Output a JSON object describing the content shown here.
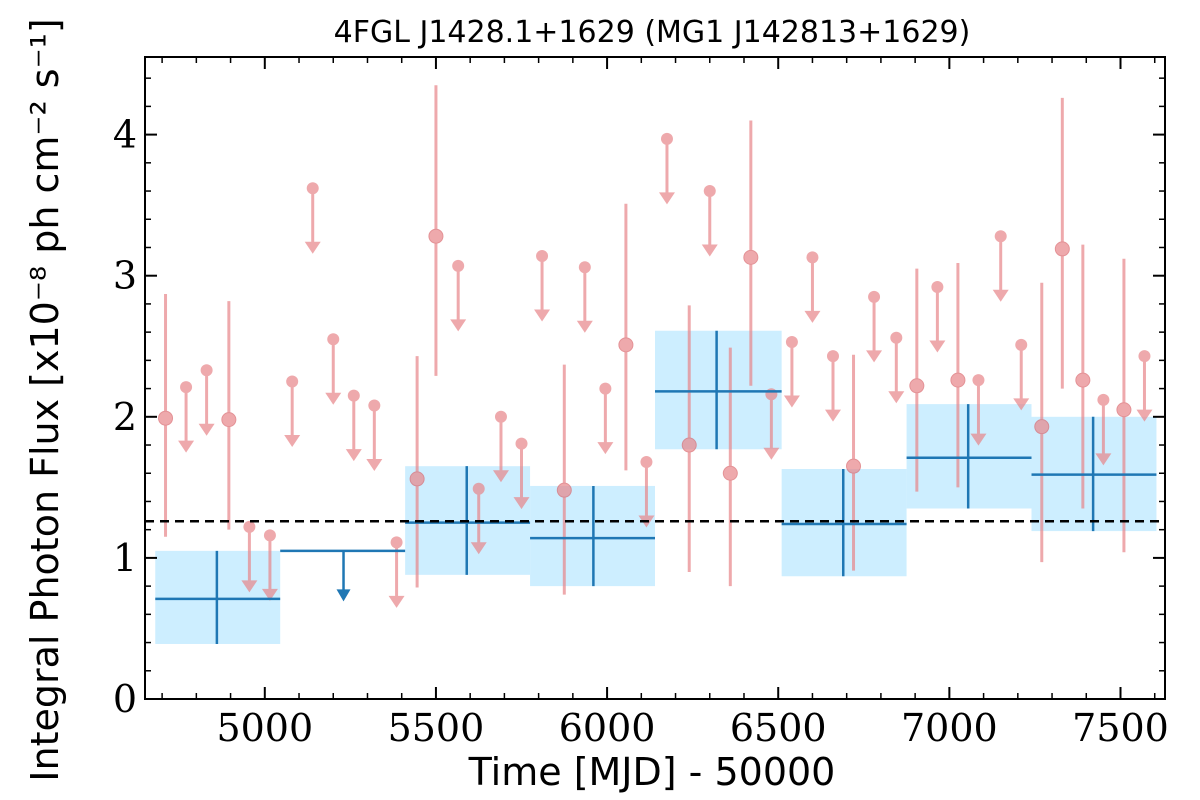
{
  "chart_data": {
    "type": "scatter",
    "title": "4FGL J1428.1+1629 (MG1 J142813+1629)",
    "xlabel": "Time [MJD] - 50000",
    "ylabel": "Integral Photon Flux [x10⁻⁸ ph cm⁻² s⁻¹]",
    "xlim": [
      4650,
      7630
    ],
    "ylim": [
      0,
      4.55
    ],
    "xticks": [
      5000,
      5500,
      6000,
      6500,
      7000,
      7500
    ],
    "yticks": [
      0,
      1,
      2,
      3,
      4
    ],
    "xtick_labels": [
      "5000",
      "5500",
      "6000",
      "6500",
      "7000",
      "7500"
    ],
    "ytick_labels": [
      "0",
      "1",
      "2",
      "3",
      "4"
    ],
    "reference_line": {
      "y": 1.26,
      "style": "dashed",
      "color": "#000000"
    },
    "colors": {
      "fine_bins": "#e8868a",
      "coarse_bins": "#1f77b4",
      "coarse_band": "#cdeeff"
    },
    "series": [
      {
        "binning": "fine",
        "detections": [
          {
            "x": 4710,
            "y": 1.99,
            "ylo": 1.15,
            "yhi": 2.87
          },
          {
            "x": 4895,
            "y": 1.98,
            "ylo": 1.2,
            "yhi": 2.82
          },
          {
            "x": 5445,
            "y": 1.56,
            "ylo": 0.79,
            "yhi": 2.43
          },
          {
            "x": 5500,
            "y": 3.28,
            "ylo": 2.29,
            "yhi": 4.35
          },
          {
            "x": 5875,
            "y": 1.48,
            "ylo": 0.74,
            "yhi": 2.37
          },
          {
            "x": 6055,
            "y": 2.51,
            "ylo": 1.62,
            "yhi": 3.51
          },
          {
            "x": 6240,
            "y": 1.8,
            "ylo": 0.9,
            "yhi": 2.79
          },
          {
            "x": 6360,
            "y": 1.6,
            "ylo": 0.8,
            "yhi": 2.49
          },
          {
            "x": 6420,
            "y": 3.13,
            "ylo": 2.22,
            "yhi": 4.1
          },
          {
            "x": 6720,
            "y": 1.65,
            "ylo": 0.91,
            "yhi": 2.44
          },
          {
            "x": 6905,
            "y": 2.22,
            "ylo": 1.47,
            "yhi": 3.05
          },
          {
            "x": 7025,
            "y": 2.26,
            "ylo": 1.5,
            "yhi": 3.09
          },
          {
            "x": 7270,
            "y": 1.93,
            "ylo": 0.97,
            "yhi": 2.95
          },
          {
            "x": 7330,
            "y": 3.19,
            "ylo": 2.2,
            "yhi": 4.26
          },
          {
            "x": 7390,
            "y": 2.26,
            "ylo": 1.35,
            "yhi": 3.22
          },
          {
            "x": 7510,
            "y": 2.05,
            "ylo": 1.04,
            "yhi": 3.12
          }
        ],
        "upper_limits": [
          {
            "x": 4770,
            "y": 2.21
          },
          {
            "x": 4830,
            "y": 2.33
          },
          {
            "x": 4955,
            "y": 1.22
          },
          {
            "x": 5015,
            "y": 1.16
          },
          {
            "x": 5080,
            "y": 2.25
          },
          {
            "x": 5140,
            "y": 3.62
          },
          {
            "x": 5200,
            "y": 2.55
          },
          {
            "x": 5260,
            "y": 2.15
          },
          {
            "x": 5320,
            "y": 2.08
          },
          {
            "x": 5385,
            "y": 1.11
          },
          {
            "x": 5565,
            "y": 3.07
          },
          {
            "x": 5625,
            "y": 1.49
          },
          {
            "x": 5690,
            "y": 2.0
          },
          {
            "x": 5750,
            "y": 1.81
          },
          {
            "x": 5810,
            "y": 3.14
          },
          {
            "x": 5935,
            "y": 3.06
          },
          {
            "x": 5995,
            "y": 2.2
          },
          {
            "x": 6115,
            "y": 1.68
          },
          {
            "x": 6175,
            "y": 3.97
          },
          {
            "x": 6300,
            "y": 3.6
          },
          {
            "x": 6480,
            "y": 2.16
          },
          {
            "x": 6540,
            "y": 2.53
          },
          {
            "x": 6600,
            "y": 3.13
          },
          {
            "x": 6660,
            "y": 2.43
          },
          {
            "x": 6780,
            "y": 2.85
          },
          {
            "x": 6845,
            "y": 2.56
          },
          {
            "x": 6965,
            "y": 2.92
          },
          {
            "x": 7085,
            "y": 2.26
          },
          {
            "x": 7150,
            "y": 3.28
          },
          {
            "x": 7210,
            "y": 2.51
          },
          {
            "x": 7450,
            "y": 2.12
          },
          {
            "x": 7570,
            "y": 2.43
          }
        ]
      },
      {
        "binning": "coarse",
        "detections": [
          {
            "x0": 4680,
            "x1": 5045,
            "xc": 4860,
            "y": 0.71,
            "ylo": 0.39,
            "yhi": 1.05
          },
          {
            "x0": 5410,
            "x1": 5775,
            "xc": 5590,
            "y": 1.25,
            "ylo": 0.88,
            "yhi": 1.65
          },
          {
            "x0": 5775,
            "x1": 6140,
            "xc": 5960,
            "y": 1.14,
            "ylo": 0.8,
            "yhi": 1.51
          },
          {
            "x0": 6140,
            "x1": 6510,
            "xc": 6320,
            "y": 2.18,
            "ylo": 1.77,
            "yhi": 2.61
          },
          {
            "x0": 6510,
            "x1": 6875,
            "xc": 6690,
            "y": 1.24,
            "ylo": 0.87,
            "yhi": 1.63
          },
          {
            "x0": 6875,
            "x1": 7240,
            "xc": 7055,
            "y": 1.71,
            "ylo": 1.35,
            "yhi": 2.09
          },
          {
            "x0": 7240,
            "x1": 7605,
            "xc": 7420,
            "y": 1.59,
            "ylo": 1.19,
            "yhi": 2.0
          }
        ],
        "upper_limits": [
          {
            "x0": 5045,
            "x1": 5410,
            "xc": 5230,
            "y": 1.05
          }
        ]
      }
    ]
  }
}
